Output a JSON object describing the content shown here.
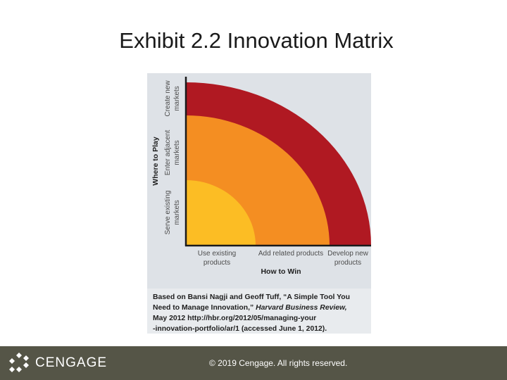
{
  "title": "Exhibit 2.2 Innovation Matrix",
  "matrix": {
    "y_axis_title": "Where to Play",
    "y_levels": [
      {
        "line1": "Serve existing",
        "line2": "markets"
      },
      {
        "line1": "Enter adjacent",
        "line2": "markets"
      },
      {
        "line1": "Create new",
        "line2": "markets"
      }
    ],
    "x_axis_title": "How to Win",
    "x_levels": [
      {
        "line1": "Use existing",
        "line2": "products"
      },
      {
        "line1": "Add related products",
        "line2": ""
      },
      {
        "line1": "Develop new",
        "line2": "products"
      }
    ],
    "zone_colors": {
      "core": "#fcbd24",
      "adjacent": "#f48e22",
      "transformational": "#b01922",
      "panel_background": "#dee2e7"
    }
  },
  "caption": {
    "line1": "Based on Bansi Nagji and Geoff Tuff, “A Simple Tool You",
    "line2_plain": "Need to Manage Innovation,” ",
    "line2_italic": "Harvard Business Review,",
    "line3": "May 2012 http://hbr.org/2012/05/managing-your",
    "line4": "-innovation-portfolio/ar/1 (accessed June 1, 2012)."
  },
  "footer": {
    "brand": "CENGAGE",
    "copyright": "© 2019 Cengage. All rights reserved.",
    "background": "#555547"
  }
}
